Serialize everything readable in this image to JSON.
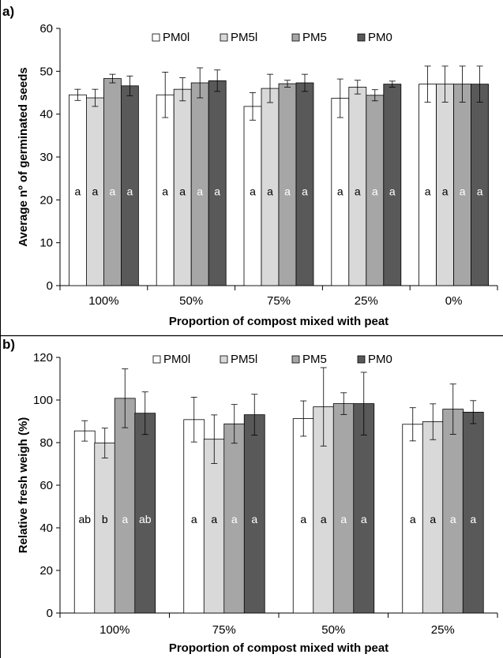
{
  "chart_data": [
    {
      "type": "bar",
      "panel_label": "a)",
      "ylabel": "Average nº of germinated seeds",
      "xlabel": "Proportion of compost mixed with peat",
      "ylim": [
        0,
        60
      ],
      "yticks": [
        0,
        10,
        20,
        30,
        40,
        50,
        60
      ],
      "grid": false,
      "legend_position": "top",
      "categories": [
        "100%",
        "50%",
        "75%",
        "25%",
        "0%"
      ],
      "series": [
        {
          "name": "PM0l",
          "color": "#ffffff",
          "values": [
            44.5,
            44.5,
            41.8,
            43.7,
            47.0
          ],
          "errors": [
            1.3,
            5.3,
            3.2,
            4.5,
            4.2
          ],
          "letters": [
            "a",
            "a",
            "a",
            "a",
            "a"
          ]
        },
        {
          "name": "PM5l",
          "color": "#d9d9d9",
          "values": [
            43.8,
            45.8,
            46.0,
            46.3,
            47.0
          ],
          "errors": [
            2.0,
            2.7,
            3.3,
            1.6,
            4.2
          ],
          "letters": [
            "a",
            "a",
            "a",
            "a",
            "a"
          ]
        },
        {
          "name": "PM5",
          "color": "#a6a6a6",
          "values": [
            48.3,
            47.3,
            47.1,
            44.4,
            47.0
          ],
          "errors": [
            1.0,
            3.5,
            0.8,
            1.3,
            4.2
          ],
          "letters": [
            "a",
            "a",
            "a",
            "a",
            "a"
          ]
        },
        {
          "name": "PM0",
          "color": "#595959",
          "values": [
            46.6,
            47.8,
            47.3,
            47.0,
            47.0
          ],
          "errors": [
            2.3,
            2.5,
            2.0,
            0.7,
            4.2
          ],
          "letters": [
            "a",
            "a",
            "a",
            "a",
            "a"
          ]
        }
      ]
    },
    {
      "type": "bar",
      "panel_label": "b)",
      "ylabel": "Relative fresh weigh (%)",
      "xlabel": "Proportion of compost mixed with peat",
      "ylim": [
        0,
        120
      ],
      "yticks": [
        0,
        20,
        40,
        60,
        80,
        100,
        120
      ],
      "grid": false,
      "legend_position": "top",
      "categories": [
        "100%",
        "75%",
        "50%",
        "25%"
      ],
      "series": [
        {
          "name": "PM0l",
          "color": "#ffffff",
          "values": [
            85.5,
            90.8,
            91.3,
            88.6
          ],
          "errors": [
            4.8,
            10.5,
            8.3,
            7.8
          ],
          "letters": [
            "ab",
            "a",
            "a",
            "a"
          ]
        },
        {
          "name": "PM5l",
          "color": "#d9d9d9",
          "values": [
            79.8,
            81.6,
            96.8,
            89.8
          ],
          "errors": [
            7.0,
            11.4,
            18.4,
            8.4
          ],
          "letters": [
            "b",
            "a",
            "a",
            "a"
          ]
        },
        {
          "name": "PM5",
          "color": "#a6a6a6",
          "values": [
            100.8,
            88.8,
            98.3,
            95.7
          ],
          "errors": [
            13.8,
            9.1,
            5.1,
            11.8
          ],
          "letters": [
            "a",
            "a",
            "a",
            "a"
          ]
        },
        {
          "name": "PM0",
          "color": "#595959",
          "values": [
            93.8,
            93.1,
            98.3,
            94.3
          ],
          "errors": [
            10.0,
            9.6,
            14.7,
            5.4
          ],
          "letters": [
            "ab",
            "a",
            "a",
            "a"
          ]
        }
      ]
    }
  ]
}
